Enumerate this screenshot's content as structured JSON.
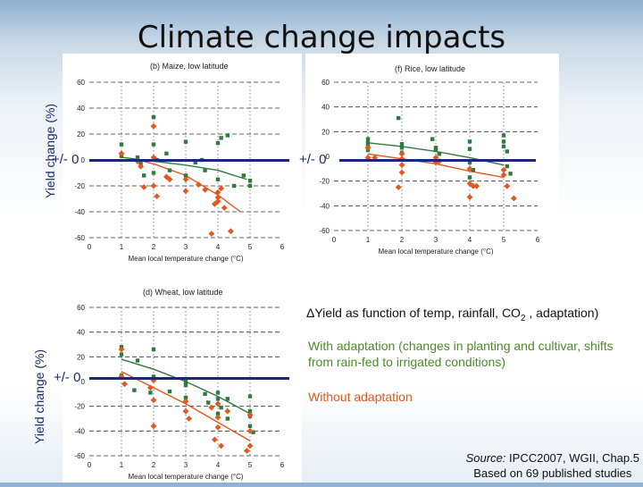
{
  "slide": {
    "title": "Climate change impacts",
    "ylabel_top": "Yield change (%)",
    "ylabel_bottom": "Yield change (%)",
    "zero_label": "+/- 0",
    "delta_note": "ΔYield as function of temp, rainfall, CO",
    "delta_note_sub": "2",
    "delta_note_end": " , adaptation)",
    "with_adaptation": "With adaptation (changes in planting and cultivar, shifts from rain-fed to irrigated conditions)",
    "without_adaptation": "Without adaptation",
    "source_label": "Source:",
    "source_text": " IPCC2007, WGII, Chap.5",
    "source_line2": "Based on 69 published studies",
    "colors": {
      "with": "#2f7a3e",
      "without": "#e4571e",
      "zero_line": "#1a2a72",
      "with_text": "#4d8a2a",
      "without_text": "#e05a1c"
    }
  },
  "chart_data": [
    {
      "type": "scatter",
      "title": "(b) Maize, low latitude",
      "xlabel": "Mean local temperature change (°C)",
      "ylabel": "",
      "xlim": [
        0,
        6
      ],
      "ylim": [
        -60,
        60
      ],
      "xticks": [
        "0",
        "1",
        "2",
        "3",
        "4",
        "5",
        "6"
      ],
      "yticks": [
        "60",
        "40",
        "20",
        "0",
        "-20",
        "-40",
        "-60"
      ],
      "series": [
        {
          "key": "with",
          "marker": "square",
          "points": [
            [
              1,
              12
            ],
            [
              1,
              3
            ],
            [
              1.5,
              2
            ],
            [
              1.6,
              -3
            ],
            [
              1.7,
              -12
            ],
            [
              2,
              33
            ],
            [
              2,
              12
            ],
            [
              2,
              -10
            ],
            [
              2.1,
              0
            ],
            [
              2.4,
              5
            ],
            [
              2.5,
              -8
            ],
            [
              3,
              14
            ],
            [
              3,
              -12
            ],
            [
              3.3,
              -2
            ],
            [
              3.5,
              0
            ],
            [
              3.6,
              -8
            ],
            [
              4,
              13
            ],
            [
              4,
              -15
            ],
            [
              4.1,
              17
            ],
            [
              4.3,
              19
            ],
            [
              4.5,
              -20
            ],
            [
              4.8,
              -12
            ],
            [
              5,
              -16
            ],
            [
              5,
              -20
            ]
          ]
        },
        {
          "key": "without",
          "marker": "diamond",
          "points": [
            [
              1,
              5
            ],
            [
              1.5,
              -1
            ],
            [
              1.6,
              -5
            ],
            [
              1.7,
              -21
            ],
            [
              2,
              26
            ],
            [
              2,
              2
            ],
            [
              2,
              -20
            ],
            [
              2.1,
              -28
            ],
            [
              2.4,
              -13
            ],
            [
              2.5,
              -15
            ],
            [
              3,
              -15
            ],
            [
              3,
              -24
            ],
            [
              3.4,
              -19
            ],
            [
              3.6,
              -23
            ],
            [
              4,
              -25
            ],
            [
              4,
              -32
            ],
            [
              4.1,
              -22
            ],
            [
              4.2,
              -37
            ],
            [
              3.9,
              -34
            ],
            [
              4,
              -29
            ],
            [
              3.8,
              -57
            ],
            [
              4.4,
              -55
            ]
          ]
        }
      ],
      "trend": {
        "with": [
          [
            1,
            2
          ],
          [
            2,
            -1
          ],
          [
            3,
            -4
          ],
          [
            4,
            -8
          ],
          [
            4.9,
            -15
          ]
        ],
        "without": [
          [
            1.5,
            0
          ],
          [
            2,
            -3
          ],
          [
            3,
            -12
          ],
          [
            4,
            -27
          ],
          [
            4.7,
            -40
          ]
        ]
      }
    },
    {
      "type": "scatter",
      "title": "(f) Rice, low latitude",
      "xlabel": "Mean local temperature change (°C)",
      "ylabel": "",
      "xlim": [
        0,
        6
      ],
      "ylim": [
        -60,
        60
      ],
      "xticks": [
        "0",
        "1",
        "2",
        "3",
        "4",
        "5",
        "6"
      ],
      "yticks": [
        "60",
        "40",
        "20",
        "0",
        "-20",
        "-40",
        "-60"
      ],
      "series": [
        {
          "key": "with",
          "marker": "square",
          "points": [
            [
              1,
              14
            ],
            [
              1,
              11
            ],
            [
              1,
              8
            ],
            [
              1,
              5
            ],
            [
              1.9,
              31
            ],
            [
              2,
              10
            ],
            [
              2,
              7
            ],
            [
              2,
              3
            ],
            [
              2.9,
              14
            ],
            [
              3,
              7
            ],
            [
              3,
              5
            ],
            [
              3.1,
              2
            ],
            [
              4,
              12
            ],
            [
              4,
              6
            ],
            [
              4,
              -5
            ],
            [
              4.1,
              -11
            ],
            [
              4,
              -17
            ],
            [
              5,
              17
            ],
            [
              5,
              12
            ],
            [
              5,
              8
            ],
            [
              5.1,
              4
            ],
            [
              5.1,
              -8
            ],
            [
              5.2,
              -14
            ]
          ]
        },
        {
          "key": "without",
          "marker": "diamond",
          "points": [
            [
              1,
              7
            ],
            [
              1,
              -1
            ],
            [
              1.2,
              -1
            ],
            [
              2,
              2
            ],
            [
              2,
              -2
            ],
            [
              2,
              -7
            ],
            [
              2,
              -13
            ],
            [
              1.9,
              -25
            ],
            [
              3,
              -1
            ],
            [
              3,
              -5
            ],
            [
              3.1,
              -4
            ],
            [
              4,
              -10
            ],
            [
              4,
              -22
            ],
            [
              4.1,
              -24
            ],
            [
              4.2,
              -24
            ],
            [
              4,
              -33
            ],
            [
              5,
              -11
            ],
            [
              5,
              -15
            ],
            [
              5.1,
              -24
            ],
            [
              5.3,
              -34
            ]
          ]
        }
      ],
      "trend": {
        "with": [
          [
            1,
            11
          ],
          [
            2,
            8
          ],
          [
            3,
            4
          ],
          [
            4,
            -1
          ],
          [
            5,
            -7
          ]
        ],
        "without": [
          [
            1,
            2
          ],
          [
            2,
            -2
          ],
          [
            3,
            -6
          ],
          [
            4,
            -12
          ],
          [
            5,
            -17
          ]
        ]
      }
    },
    {
      "type": "scatter",
      "title": "(d) Wheat, low latitude",
      "xlabel": "Mean local temperature change (°C)",
      "ylabel": "",
      "xlim": [
        0,
        6
      ],
      "ylim": [
        -60,
        60
      ],
      "xticks": [
        "0",
        "1",
        "2",
        "3",
        "4",
        "5",
        "6"
      ],
      "yticks": [
        "60",
        "40",
        "20",
        "0",
        "-20",
        "-40",
        "-60"
      ],
      "series": [
        {
          "key": "with",
          "marker": "square",
          "points": [
            [
              1,
              28
            ],
            [
              1,
              22
            ],
            [
              1,
              5
            ],
            [
              1.5,
              17
            ],
            [
              1.4,
              -7
            ],
            [
              2,
              26
            ],
            [
              2,
              4
            ],
            [
              2,
              2
            ],
            [
              1.9,
              -9
            ],
            [
              2.5,
              -8
            ],
            [
              3,
              0
            ],
            [
              3,
              -3
            ],
            [
              3,
              -13
            ],
            [
              3.6,
              -10
            ],
            [
              3.7,
              -17
            ],
            [
              4,
              -9
            ],
            [
              4,
              -14
            ],
            [
              4,
              -26
            ],
            [
              4.1,
              -21
            ],
            [
              4.3,
              -14
            ],
            [
              4.3,
              -30
            ],
            [
              5,
              -12
            ],
            [
              5,
              -24
            ],
            [
              5,
              -28
            ],
            [
              5,
              -36
            ],
            [
              5.1,
              -41
            ]
          ]
        },
        {
          "key": "without",
          "marker": "diamond",
          "points": [
            [
              1,
              26
            ],
            [
              1,
              4
            ],
            [
              1.1,
              -2
            ],
            [
              2,
              1
            ],
            [
              1.9,
              -5
            ],
            [
              2,
              -15
            ],
            [
              2,
              -36
            ],
            [
              3,
              -16
            ],
            [
              3,
              -24
            ],
            [
              3.1,
              -30
            ],
            [
              3.8,
              -21
            ],
            [
              4,
              -18
            ],
            [
              4,
              -29
            ],
            [
              4,
              -37
            ],
            [
              3.9,
              -47
            ],
            [
              4.1,
              -52
            ],
            [
              4.3,
              -24
            ],
            [
              5,
              -27
            ],
            [
              5,
              -40
            ],
            [
              5,
              -52
            ],
            [
              4.9,
              -56
            ]
          ]
        }
      ],
      "trend": {
        "with": [
          [
            1,
            18
          ],
          [
            2,
            10
          ],
          [
            3,
            0
          ],
          [
            4,
            -12
          ],
          [
            5,
            -26
          ]
        ],
        "without": [
          [
            1,
            8
          ],
          [
            2,
            -5
          ],
          [
            3,
            -18
          ],
          [
            4,
            -33
          ],
          [
            5,
            -48
          ]
        ]
      }
    }
  ]
}
